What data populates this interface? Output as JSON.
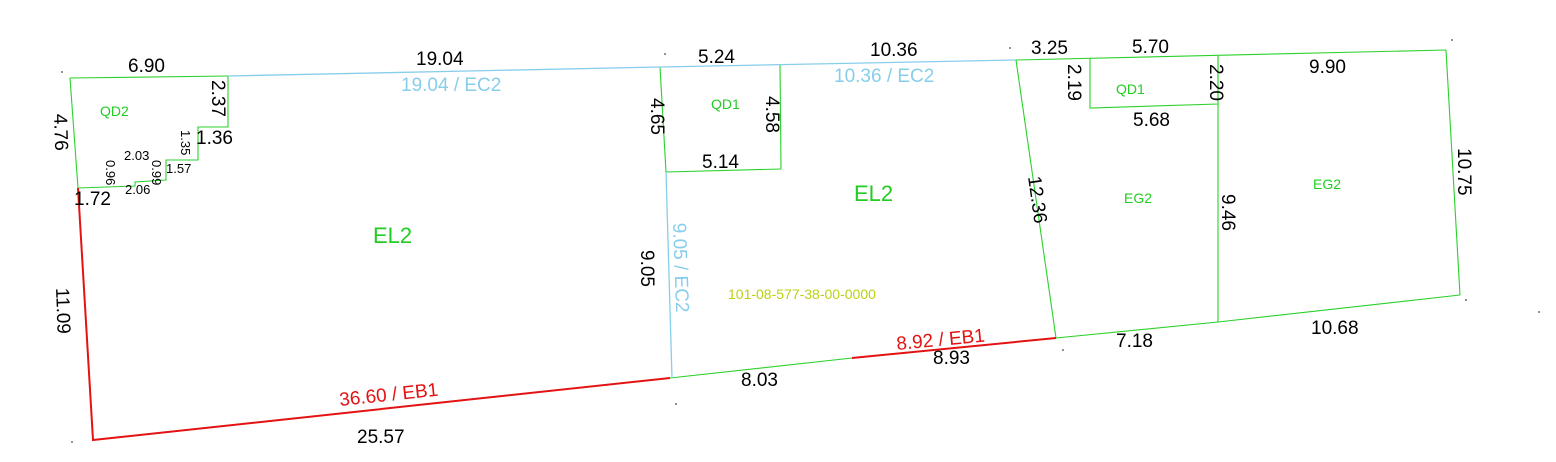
{
  "parcel": {
    "id": "101-08-577-38-00-0000",
    "id_color": "#bcd012"
  },
  "zones": {
    "qd2": "QD2",
    "el2_left": "EL2",
    "qd1_mid": "QD1",
    "el2_mid": "EL2",
    "qd1_right": "QD1",
    "eg2_a": "EG2",
    "eg2_b": "EG2"
  },
  "boundary_labels": {
    "top_left": "19.04 / EC2",
    "top_mid": "10.36 / EC2",
    "divider": "9.05 / EC2",
    "bottom_left": "36.60 / EB1",
    "bottom_mid": "8.92 / EB1"
  },
  "dimensions": {
    "d6_90": "6.90",
    "d19_04": "19.04",
    "d5_24": "5.24",
    "d10_36": "10.36",
    "d3_25": "3.25",
    "d5_70": "5.70",
    "d9_90": "9.90",
    "d4_76": "4.76",
    "d2_37": "2.37",
    "d1_36": "1.36",
    "d2_03": "2.03",
    "d1_35": "1.35",
    "d0_99": "0.99",
    "d1_57": "1.57",
    "d0_96": "0.96",
    "d2_06": "2.06",
    "d1_72": "1.72",
    "d11_09": "11.09",
    "d25_57": "25.57",
    "d4_65": "4.65",
    "d4_58": "4.58",
    "d5_14": "5.14",
    "d9_05": "9.05",
    "d8_03": "8.03",
    "d8_93": "8.93",
    "d2_19": "2.19",
    "d2_20": "2.20",
    "d5_68": "5.68",
    "d12_36": "12.36",
    "d9_46": "9.46",
    "d10_75": "10.75",
    "d7_18": "7.18",
    "d10_68": "10.68"
  },
  "colors": {
    "lot_line": "#2bd12b",
    "ec_boundary": "#87ceeb",
    "eb_boundary": "#e41212",
    "dimension_text": "#000000",
    "zone_text": "#22cc22"
  }
}
